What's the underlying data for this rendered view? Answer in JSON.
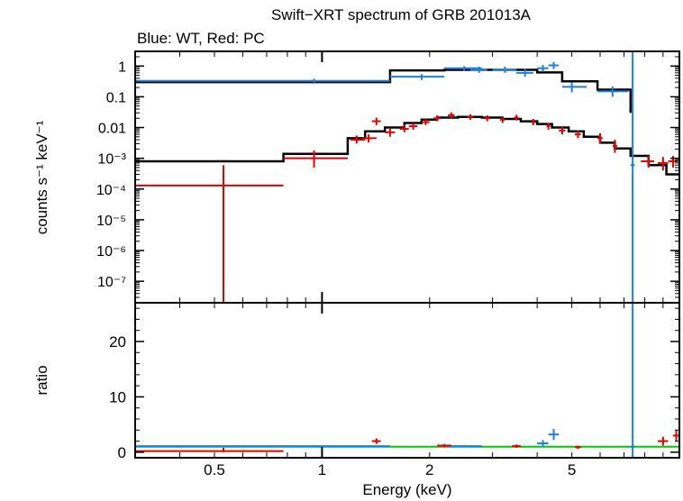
{
  "chart_data": [
    {
      "type": "scatter",
      "panel": "spectrum",
      "title": "Swift−XRT spectrum of GRB 201013A",
      "subtitle": "Blue: WT, Red: PC",
      "ylabel": "counts s⁻¹ keV⁻¹",
      "xlabel": "",
      "x_scale": "log",
      "y_scale": "log",
      "xlim": [
        0.3,
        10
      ],
      "ylim": [
        2e-08,
        3
      ],
      "ytick_labels": [
        "1",
        "0.1",
        "0.01",
        "10⁻³",
        "10⁻⁴",
        "10⁻⁵",
        "10⁻⁶",
        "10⁻⁷"
      ],
      "ytick_values": [
        1,
        0.1,
        0.01,
        0.001,
        0.0001,
        1e-05,
        1e-06,
        1e-07
      ],
      "series": [
        {
          "color": "#1a7fe6",
          "points": [
            {
              "x": 0.95,
              "xlo": 0.3,
              "xhi": 1.55,
              "y": 0.33,
              "ylo": 0.29,
              "yhi": 0.39
            },
            {
              "x": 1.9,
              "xlo": 1.55,
              "xhi": 2.2,
              "y": 0.45,
              "ylo": 0.35,
              "yhi": 0.55
            },
            {
              "x": 2.5,
              "xlo": 2.2,
              "xhi": 2.8,
              "y": 0.85,
              "ylo": 0.7,
              "yhi": 1.0
            },
            {
              "x": 2.75,
              "xlo": 2.6,
              "xhi": 2.9,
              "y": 0.75,
              "ylo": 0.6,
              "yhi": 0.95
            },
            {
              "x": 3.25,
              "xlo": 3.0,
              "xhi": 3.5,
              "y": 0.75,
              "ylo": 0.6,
              "yhi": 0.95
            },
            {
              "x": 3.7,
              "xlo": 3.5,
              "xhi": 3.9,
              "y": 0.6,
              "ylo": 0.45,
              "yhi": 0.8
            },
            {
              "x": 4.15,
              "xlo": 4.0,
              "xhi": 4.3,
              "y": 0.85,
              "ylo": 0.65,
              "yhi": 1.1
            },
            {
              "x": 4.45,
              "xlo": 4.3,
              "xhi": 4.6,
              "y": 1.05,
              "ylo": 0.8,
              "yhi": 1.35
            },
            {
              "x": 5.0,
              "xlo": 4.7,
              "xhi": 5.5,
              "y": 0.21,
              "ylo": 0.14,
              "yhi": 0.3
            },
            {
              "x": 6.5,
              "xlo": 5.9,
              "xhi": 7.2,
              "y": 0.15,
              "ylo": 0.1,
              "yhi": 0.22
            },
            {
              "x": 7.4,
              "xlo": 7.3,
              "xhi": 7.5,
              "y": 0.0006,
              "ylo": 2e-08,
              "yhi": 3
            }
          ]
        },
        {
          "color": "#e60000",
          "points": [
            {
              "x": 0.53,
              "xlo": 0.3,
              "xhi": 0.78,
              "y": 0.00013,
              "ylo": 2e-08,
              "yhi": 0.0006
            },
            {
              "x": 0.95,
              "xlo": 0.78,
              "xhi": 1.18,
              "y": 0.001,
              "ylo": 0.0005,
              "yhi": 0.0018
            },
            {
              "x": 1.25,
              "xlo": 1.2,
              "xhi": 1.32,
              "y": 0.004,
              "ylo": 0.003,
              "yhi": 0.0055
            },
            {
              "x": 1.35,
              "xlo": 1.3,
              "xhi": 1.42,
              "y": 0.0045,
              "ylo": 0.0033,
              "yhi": 0.006
            },
            {
              "x": 1.42,
              "xlo": 1.38,
              "xhi": 1.46,
              "y": 0.016,
              "ylo": 0.012,
              "yhi": 0.021
            },
            {
              "x": 1.55,
              "xlo": 1.5,
              "xhi": 1.6,
              "y": 0.007,
              "ylo": 0.005,
              "yhi": 0.0095
            },
            {
              "x": 1.7,
              "xlo": 1.65,
              "xhi": 1.75,
              "y": 0.009,
              "ylo": 0.007,
              "yhi": 0.012
            },
            {
              "x": 1.8,
              "xlo": 1.75,
              "xhi": 1.85,
              "y": 0.011,
              "ylo": 0.0085,
              "yhi": 0.014
            },
            {
              "x": 1.95,
              "xlo": 1.9,
              "xhi": 2.0,
              "y": 0.015,
              "ylo": 0.012,
              "yhi": 0.019
            },
            {
              "x": 2.1,
              "xlo": 2.05,
              "xhi": 2.15,
              "y": 0.02,
              "ylo": 0.016,
              "yhi": 0.025
            },
            {
              "x": 2.3,
              "xlo": 2.25,
              "xhi": 2.35,
              "y": 0.025,
              "ylo": 0.02,
              "yhi": 0.031
            },
            {
              "x": 2.6,
              "xlo": 2.55,
              "xhi": 2.65,
              "y": 0.022,
              "ylo": 0.018,
              "yhi": 0.027
            },
            {
              "x": 2.9,
              "xlo": 2.85,
              "xhi": 2.95,
              "y": 0.02,
              "ylo": 0.016,
              "yhi": 0.025
            },
            {
              "x": 3.2,
              "xlo": 3.15,
              "xhi": 3.25,
              "y": 0.018,
              "ylo": 0.014,
              "yhi": 0.022
            },
            {
              "x": 3.5,
              "xlo": 3.45,
              "xhi": 3.55,
              "y": 0.021,
              "ylo": 0.017,
              "yhi": 0.026
            },
            {
              "x": 3.9,
              "xlo": 3.85,
              "xhi": 3.95,
              "y": 0.015,
              "ylo": 0.012,
              "yhi": 0.019
            },
            {
              "x": 4.3,
              "xlo": 4.25,
              "xhi": 4.35,
              "y": 0.011,
              "ylo": 0.0085,
              "yhi": 0.014
            },
            {
              "x": 4.7,
              "xlo": 4.6,
              "xhi": 4.8,
              "y": 0.008,
              "ylo": 0.006,
              "yhi": 0.011
            },
            {
              "x": 5.2,
              "xlo": 5.1,
              "xhi": 5.3,
              "y": 0.006,
              "ylo": 0.0045,
              "yhi": 0.008
            },
            {
              "x": 6.0,
              "xlo": 5.9,
              "xhi": 6.1,
              "y": 0.0045,
              "ylo": 0.003,
              "yhi": 0.0065
            },
            {
              "x": 6.6,
              "xlo": 6.5,
              "xhi": 6.7,
              "y": 0.0025,
              "ylo": 0.0015,
              "yhi": 0.004
            },
            {
              "x": 8.2,
              "xlo": 7.8,
              "xhi": 8.5,
              "y": 0.0008,
              "ylo": 0.0005,
              "yhi": 0.0012
            },
            {
              "x": 9.0,
              "xlo": 8.7,
              "xhi": 9.3,
              "y": 0.0007,
              "ylo": 0.0004,
              "yhi": 0.0011
            },
            {
              "x": 9.6,
              "xlo": 9.3,
              "xhi": 9.9,
              "y": 0.0008,
              "ylo": 0.0005,
              "yhi": 0.0012
            }
          ]
        }
      ],
      "models": [
        {
          "color": "#000000",
          "steps": [
            [
              0.3,
              0.3
            ],
            [
              1.55,
              0.3
            ],
            [
              1.55,
              0.72
            ],
            [
              2.2,
              0.72
            ],
            [
              2.2,
              0.75
            ],
            [
              4.0,
              0.75
            ],
            [
              4.0,
              0.62
            ],
            [
              4.7,
              0.62
            ],
            [
              4.7,
              0.32
            ],
            [
              5.9,
              0.32
            ],
            [
              5.9,
              0.17
            ],
            [
              7.3,
              0.17
            ],
            [
              7.3,
              0.03
            ]
          ]
        },
        {
          "color": "#000000",
          "steps": [
            [
              0.3,
              0.0008
            ],
            [
              0.78,
              0.0008
            ],
            [
              0.78,
              0.0014
            ],
            [
              1.18,
              0.0014
            ],
            [
              1.18,
              0.0045
            ],
            [
              1.32,
              0.0045
            ],
            [
              1.32,
              0.0075
            ],
            [
              1.5,
              0.0075
            ],
            [
              1.5,
              0.01
            ],
            [
              1.7,
              0.01
            ],
            [
              1.7,
              0.014
            ],
            [
              1.9,
              0.014
            ],
            [
              1.9,
              0.018
            ],
            [
              2.1,
              0.018
            ],
            [
              2.1,
              0.021
            ],
            [
              2.4,
              0.021
            ],
            [
              2.4,
              0.022
            ],
            [
              2.8,
              0.022
            ],
            [
              2.8,
              0.021
            ],
            [
              3.2,
              0.021
            ],
            [
              3.2,
              0.019
            ],
            [
              3.6,
              0.019
            ],
            [
              3.6,
              0.016
            ],
            [
              4.0,
              0.016
            ],
            [
              4.0,
              0.013
            ],
            [
              4.4,
              0.013
            ],
            [
              4.4,
              0.01
            ],
            [
              4.9,
              0.01
            ],
            [
              4.9,
              0.0075
            ],
            [
              5.4,
              0.0075
            ],
            [
              5.4,
              0.005
            ],
            [
              6.0,
              0.005
            ],
            [
              6.0,
              0.0032
            ],
            [
              6.6,
              0.0032
            ],
            [
              6.6,
              0.0021
            ],
            [
              7.3,
              0.0021
            ],
            [
              7.3,
              0.0012
            ],
            [
              8.2,
              0.0012
            ],
            [
              8.2,
              0.0006
            ],
            [
              9.2,
              0.0006
            ],
            [
              9.2,
              0.0003
            ],
            [
              10,
              0.0003
            ]
          ]
        }
      ]
    },
    {
      "type": "scatter",
      "panel": "ratio",
      "ylabel": "ratio",
      "xlabel": "Energy (keV)",
      "x_scale": "log",
      "xlim": [
        0.3,
        10
      ],
      "ylim": [
        -1,
        27
      ],
      "ytick_labels": [
        "20",
        "10",
        "0"
      ],
      "ytick_values": [
        20,
        10,
        0
      ],
      "xtick_labels": [
        "0.5",
        "1",
        "2",
        "5"
      ],
      "xtick_values": [
        0.5,
        1,
        2,
        5
      ],
      "reference_line": {
        "y": 1,
        "color": "#00cc00"
      },
      "series": [
        {
          "color": "#1a7fe6",
          "points": [
            {
              "x": 0.95,
              "xlo": 0.3,
              "xhi": 1.55,
              "y": 1.1,
              "ylo": 0.9,
              "yhi": 1.3
            },
            {
              "x": 2.5,
              "xlo": 2.2,
              "xhi": 2.8,
              "y": 1.1,
              "ylo": 0.9,
              "yhi": 1.3
            },
            {
              "x": 4.45,
              "xlo": 4.3,
              "xhi": 4.6,
              "y": 3.2,
              "ylo": 2.2,
              "yhi": 4.2
            },
            {
              "x": 4.15,
              "xlo": 4.0,
              "xhi": 4.3,
              "y": 1.6,
              "ylo": 1.0,
              "yhi": 2.2
            },
            {
              "x": 7.4,
              "xlo": 7.3,
              "xhi": 7.5,
              "y": 1.0,
              "ylo": -1,
              "yhi": 27
            }
          ]
        },
        {
          "color": "#e60000",
          "points": [
            {
              "x": 0.53,
              "xlo": 0.3,
              "xhi": 0.78,
              "y": 0.2,
              "ylo": 0,
              "yhi": 0.8
            },
            {
              "x": 1.42,
              "xlo": 1.38,
              "xhi": 1.46,
              "y": 2.0,
              "ylo": 1.5,
              "yhi": 2.5
            },
            {
              "x": 2.2,
              "xlo": 2.1,
              "xhi": 2.3,
              "y": 1.2,
              "ylo": 0.9,
              "yhi": 1.5
            },
            {
              "x": 3.5,
              "xlo": 3.4,
              "xhi": 3.6,
              "y": 1.1,
              "ylo": 0.8,
              "yhi": 1.4
            },
            {
              "x": 5.2,
              "xlo": 5.1,
              "xhi": 5.3,
              "y": 0.9,
              "ylo": 0.6,
              "yhi": 1.2
            },
            {
              "x": 9.0,
              "xlo": 8.7,
              "xhi": 9.3,
              "y": 2.0,
              "ylo": 1.2,
              "yhi": 2.8
            },
            {
              "x": 9.8,
              "xlo": 9.6,
              "xhi": 10,
              "y": 3.0,
              "ylo": 2.0,
              "yhi": 4.0
            }
          ]
        }
      ]
    }
  ]
}
